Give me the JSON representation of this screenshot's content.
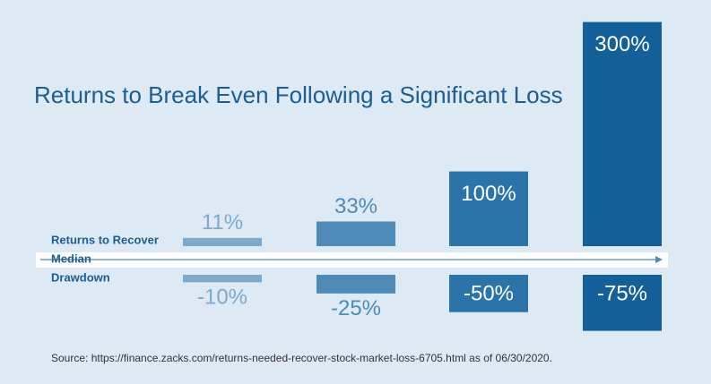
{
  "chart_data": {
    "type": "bar",
    "title": "Returns to Break Even Following a Significant Loss",
    "categories": [
      null,
      null,
      null,
      null
    ],
    "colors": [
      "#7ea9cb",
      "#4f8bb9",
      "#2a74aa",
      "#135f9a"
    ],
    "axis_label": "Median",
    "ylim": [
      -75,
      300
    ],
    "series": [
      {
        "name": "Returns to Recover",
        "values": [
          11,
          33,
          100,
          300
        ],
        "value_labels": [
          "11%",
          "33%",
          "100%",
          "300%"
        ]
      },
      {
        "name": "Drawdown",
        "values": [
          -10,
          -25,
          -50,
          -75
        ],
        "value_labels": [
          "-10%",
          "-25%",
          "-50%",
          "-75%"
        ]
      }
    ],
    "source": "Source: https://finance.zacks.com/returns-needed-recover-stock-market-loss-6705.html as of 06/30/2020."
  }
}
